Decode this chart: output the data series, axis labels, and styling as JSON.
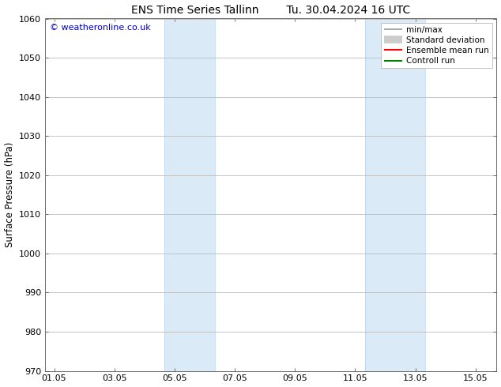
{
  "title_left": "ENS Time Series Tallinn",
  "title_right": "Tu. 30.04.2024 16 UTC",
  "ylabel": "Surface Pressure (hPa)",
  "ylim": [
    970,
    1060
  ],
  "yticks": [
    970,
    980,
    990,
    1000,
    1010,
    1020,
    1030,
    1040,
    1050,
    1060
  ],
  "xtick_labels": [
    "01.05",
    "03.05",
    "05.05",
    "07.05",
    "09.05",
    "11.05",
    "13.05",
    "15.05"
  ],
  "xtick_positions": [
    0,
    2,
    4,
    6,
    8,
    10,
    12,
    14
  ],
  "xlim": [
    -0.3,
    14.7
  ],
  "blue_bands": [
    {
      "xmin": 3.67,
      "xmax": 5.33
    },
    {
      "xmin": 10.33,
      "xmax": 12.33
    }
  ],
  "band_color": "#daeaf7",
  "band_edge_color": "#b8d4ea",
  "background_color": "#ffffff",
  "grid_color": "#bbbbbb",
  "watermark_text": "© weatheronline.co.uk",
  "watermark_color": "#0000bb",
  "legend_entries": [
    {
      "label": "min/max",
      "color": "#999999",
      "lw": 1.2,
      "style": "thin"
    },
    {
      "label": "Standard deviation",
      "color": "#cccccc",
      "lw": 7,
      "style": "thick"
    },
    {
      "label": "Ensemble mean run",
      "color": "#ff0000",
      "lw": 1.5,
      "style": "thin"
    },
    {
      "label": "Controll run",
      "color": "#008000",
      "lw": 1.5,
      "style": "thin"
    }
  ],
  "title_fontsize": 10,
  "tick_fontsize": 8,
  "ylabel_fontsize": 8.5,
  "watermark_fontsize": 8,
  "legend_fontsize": 7.5
}
